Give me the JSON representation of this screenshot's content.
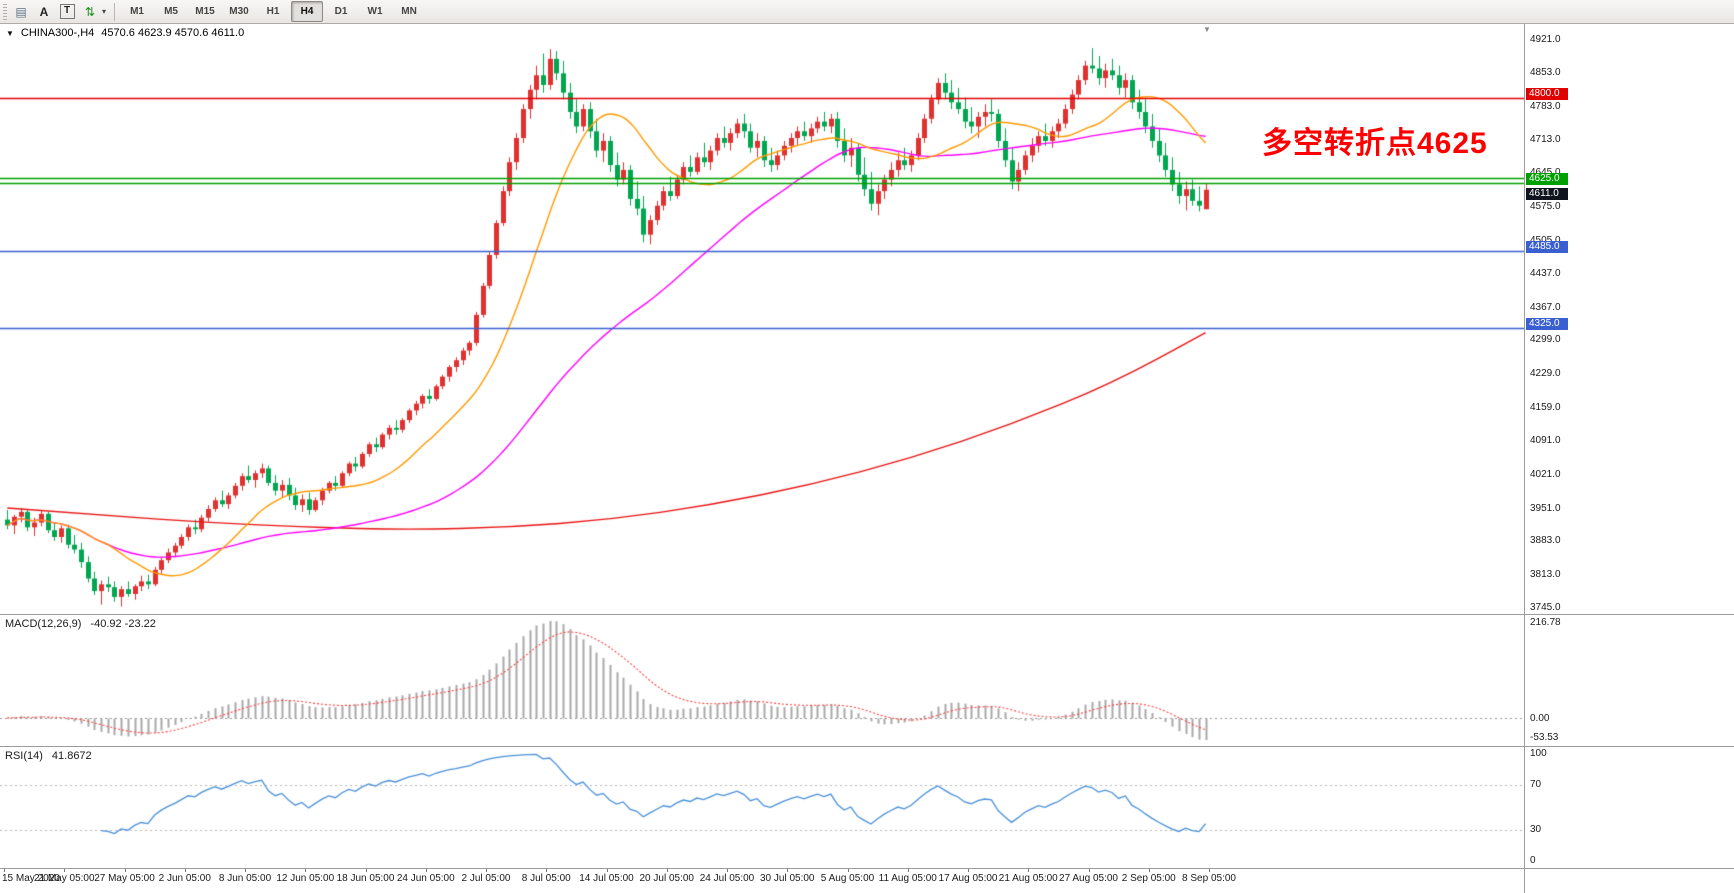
{
  "toolbar": {
    "icons": [
      {
        "name": "chart-grid-icon",
        "glyph": "▤",
        "color": "#5d7289",
        "boxed": false
      },
      {
        "name": "text-cursor-icon",
        "glyph": "A",
        "color": "#222222",
        "boxed": false
      },
      {
        "name": "text-box-icon",
        "glyph": "T",
        "color": "#222222",
        "boxed": true
      },
      {
        "name": "sort-arrows-icon",
        "glyph": "⇅",
        "color": "#1f8f1f",
        "boxed": false
      }
    ],
    "dropdown_caret": "▾",
    "timeframes": [
      "M1",
      "M5",
      "M15",
      "M30",
      "H1",
      "H4",
      "D1",
      "W1",
      "MN"
    ],
    "selected_timeframe": "H4"
  },
  "header": {
    "symbol": "CHINA300-,H4",
    "ohlc": "4570.6 4623.9 4570.6 4611.0"
  },
  "annotation": {
    "text": "多空转折点4625",
    "color": "#ff0000"
  },
  "price_axis": {
    "ticks": [
      "4921.0",
      "4853.0",
      "4783.0",
      "4713.0",
      "4645.0",
      "4575.0",
      "4505.0",
      "4437.0",
      "4367.0",
      "4299.0",
      "4229.0",
      "4159.0",
      "4091.0",
      "4021.0",
      "3951.0",
      "3883.0",
      "3813.0",
      "3745.0"
    ]
  },
  "time_axis": {
    "labels": [
      "15 May 2020",
      "21 May 05:00",
      "27 May 05:00",
      "2 Jun 05:00",
      "8 Jun 05:00",
      "12 Jun 05:00",
      "18 Jun 05:00",
      "24 Jun 05:00",
      "2 Jul 05:00",
      "8 Jul 05:00",
      "14 Jul 05:00",
      "20 Jul 05:00",
      "24 Jul 05:00",
      "30 Jul 05:00",
      "5 Aug 05:00",
      "11 Aug 05:00",
      "17 Aug 05:00",
      "21 Aug 05:00",
      "27 Aug 05:00",
      "2 Sep 05:00",
      "8 Sep 05:00"
    ]
  },
  "levels": [
    {
      "value": 4800.0,
      "color": "#e10000",
      "label": "4800.0",
      "label_bg": "#e10000"
    },
    {
      "value": 4636.0,
      "color": "#00a000",
      "label": null,
      "label_bg": null
    },
    {
      "value": 4625.0,
      "color": "#00a000",
      "label": "4625.0",
      "label_bg": "#00a000"
    },
    {
      "value": 4485.0,
      "color": "#3a5fd0",
      "label": "4485.0",
      "label_bg": "#3a5fd0"
    },
    {
      "value": 4325.0,
      "color": "#3a5fd0",
      "label": "4325.0",
      "label_bg": "#3a5fd0"
    }
  ],
  "current_price": {
    "value": 4611.0,
    "label": "4611.0",
    "label_bg": "#10141e"
  },
  "macd": {
    "label": "MACD(12,26,9)",
    "values": "-40.92 -23.22",
    "axis_top": "216.78",
    "axis_zero": "0.00",
    "axis_bottom": "-53.53",
    "params": {
      "fast": 12,
      "slow": 26,
      "signal": 9
    }
  },
  "rsi": {
    "label": "RSI(14)",
    "value": "41.8672",
    "period": 14,
    "axis": [
      "100",
      "70",
      "30",
      "0"
    ],
    "levels": [
      70,
      30
    ]
  },
  "chart_data": {
    "type": "candlestick",
    "symbol": "CHINA300-",
    "timeframe": "H4",
    "title": "CHINA300- H4 candlestick chart with MACD and RSI",
    "y_range": [
      3745.0,
      4921.0
    ],
    "last_ohlc": {
      "open": 4570.6,
      "high": 4623.9,
      "low": 4570.6,
      "close": 4611.0
    },
    "colors": {
      "bull": "#e03131",
      "bear": "#00a651",
      "ma_fast": "#ff9a00",
      "ma_mid": "#ff00ff",
      "ma_slow": "#e81414",
      "macd_bar": "#a8a8a8",
      "macd_signal": "#ff4040",
      "rsi_line": "#4a90d9"
    },
    "ma_periods": {
      "orange": 16,
      "magenta": 55
    },
    "ma_red": {
      "indices": [
        0,
        15,
        30,
        45,
        60,
        75,
        90,
        105,
        120,
        135,
        150,
        165,
        179
      ],
      "values": [
        3952,
        3936,
        3922,
        3912,
        3907,
        3912,
        3928,
        3958,
        4000,
        4055,
        4125,
        4210,
        4315
      ]
    },
    "candles": [
      [
        3928,
        3948,
        3908,
        3916
      ],
      [
        3916,
        3938,
        3898,
        3934
      ],
      [
        3934,
        3952,
        3922,
        3944
      ],
      [
        3944,
        3950,
        3904,
        3912
      ],
      [
        3912,
        3932,
        3894,
        3922
      ],
      [
        3922,
        3946,
        3914,
        3940
      ],
      [
        3940,
        3944,
        3900,
        3906
      ],
      [
        3906,
        3922,
        3884,
        3892
      ],
      [
        3892,
        3916,
        3880,
        3910
      ],
      [
        3910,
        3918,
        3868,
        3876
      ],
      [
        3876,
        3896,
        3858,
        3866
      ],
      [
        3866,
        3880,
        3828,
        3840
      ],
      [
        3840,
        3852,
        3798,
        3806
      ],
      [
        3806,
        3820,
        3772,
        3780
      ],
      [
        3780,
        3802,
        3752,
        3794
      ],
      [
        3794,
        3810,
        3778,
        3788
      ],
      [
        3788,
        3800,
        3758,
        3768
      ],
      [
        3768,
        3790,
        3748,
        3784
      ],
      [
        3784,
        3800,
        3768,
        3774
      ],
      [
        3774,
        3794,
        3762,
        3790
      ],
      [
        3790,
        3812,
        3780,
        3800
      ],
      [
        3800,
        3814,
        3784,
        3794
      ],
      [
        3794,
        3830,
        3790,
        3824
      ],
      [
        3824,
        3850,
        3814,
        3844
      ],
      [
        3844,
        3868,
        3838,
        3860
      ],
      [
        3860,
        3880,
        3850,
        3874
      ],
      [
        3874,
        3898,
        3868,
        3892
      ],
      [
        3892,
        3918,
        3884,
        3912
      ],
      [
        3912,
        3928,
        3898,
        3908
      ],
      [
        3908,
        3938,
        3902,
        3932
      ],
      [
        3932,
        3958,
        3924,
        3950
      ],
      [
        3950,
        3974,
        3944,
        3968
      ],
      [
        3968,
        3988,
        3954,
        3960
      ],
      [
        3960,
        3984,
        3950,
        3978
      ],
      [
        3978,
        4004,
        3972,
        3998
      ],
      [
        3998,
        4024,
        3988,
        4018
      ],
      [
        4018,
        4040,
        4004,
        4010
      ],
      [
        4010,
        4030,
        3994,
        4024
      ],
      [
        4024,
        4044,
        4014,
        4034
      ],
      [
        4034,
        4040,
        3998,
        4004
      ],
      [
        4004,
        4020,
        3978,
        3988
      ],
      [
        3988,
        4010,
        3974,
        4000
      ],
      [
        4000,
        4014,
        3968,
        3978
      ],
      [
        3978,
        3994,
        3948,
        3958
      ],
      [
        3958,
        3980,
        3944,
        3970
      ],
      [
        3970,
        3984,
        3938,
        3948
      ],
      [
        3948,
        3974,
        3944,
        3968
      ],
      [
        3968,
        3994,
        3958,
        3988
      ],
      [
        3988,
        4008,
        3982,
        4004
      ],
      [
        4004,
        4018,
        3988,
        3998
      ],
      [
        3998,
        4028,
        3994,
        4024
      ],
      [
        4024,
        4048,
        4018,
        4044
      ],
      [
        4044,
        4058,
        4028,
        4038
      ],
      [
        4038,
        4068,
        4034,
        4064
      ],
      [
        4064,
        4088,
        4058,
        4084
      ],
      [
        4084,
        4098,
        4068,
        4078
      ],
      [
        4078,
        4108,
        4074,
        4104
      ],
      [
        4104,
        4124,
        4094,
        4118
      ],
      [
        4118,
        4134,
        4104,
        4114
      ],
      [
        4114,
        4138,
        4108,
        4134
      ],
      [
        4134,
        4158,
        4128,
        4154
      ],
      [
        4154,
        4174,
        4144,
        4168
      ],
      [
        4168,
        4188,
        4158,
        4184
      ],
      [
        4184,
        4198,
        4168,
        4178
      ],
      [
        4178,
        4208,
        4174,
        4204
      ],
      [
        4204,
        4228,
        4198,
        4224
      ],
      [
        4224,
        4248,
        4214,
        4244
      ],
      [
        4244,
        4264,
        4234,
        4258
      ],
      [
        4258,
        4284,
        4248,
        4278
      ],
      [
        4278,
        4298,
        4268,
        4294
      ],
      [
        4294,
        4358,
        4288,
        4352
      ],
      [
        4352,
        4418,
        4346,
        4412
      ],
      [
        4412,
        4482,
        4406,
        4476
      ],
      [
        4476,
        4548,
        4468,
        4542
      ],
      [
        4542,
        4618,
        4536,
        4608
      ],
      [
        4608,
        4678,
        4598,
        4668
      ],
      [
        4668,
        4728,
        4652,
        4718
      ],
      [
        4718,
        4788,
        4708,
        4778
      ],
      [
        4778,
        4828,
        4758,
        4818
      ],
      [
        4818,
        4868,
        4798,
        4848
      ],
      [
        4848,
        4893,
        4812,
        4828
      ],
      [
        4828,
        4902,
        4818,
        4882
      ],
      [
        4882,
        4898,
        4838,
        4852
      ],
      [
        4852,
        4878,
        4798,
        4812
      ],
      [
        4812,
        4832,
        4758,
        4772
      ],
      [
        4772,
        4798,
        4728,
        4742
      ],
      [
        4742,
        4788,
        4732,
        4778
      ],
      [
        4778,
        4792,
        4718,
        4732
      ],
      [
        4732,
        4758,
        4678,
        4692
      ],
      [
        4692,
        4728,
        4668,
        4712
      ],
      [
        4712,
        4722,
        4648,
        4662
      ],
      [
        4662,
        4688,
        4618,
        4632
      ],
      [
        4632,
        4668,
        4622,
        4652
      ],
      [
        4652,
        4662,
        4578,
        4592
      ],
      [
        4592,
        4628,
        4558,
        4572
      ],
      [
        4572,
        4598,
        4502,
        4518
      ],
      [
        4518,
        4558,
        4498,
        4548
      ],
      [
        4548,
        4588,
        4538,
        4578
      ],
      [
        4578,
        4618,
        4568,
        4608
      ],
      [
        4608,
        4638,
        4588,
        4598
      ],
      [
        4598,
        4642,
        4592,
        4632
      ],
      [
        4632,
        4668,
        4622,
        4658
      ],
      [
        4658,
        4682,
        4638,
        4648
      ],
      [
        4648,
        4688,
        4642,
        4678
      ],
      [
        4678,
        4708,
        4658,
        4668
      ],
      [
        4668,
        4702,
        4652,
        4692
      ],
      [
        4692,
        4728,
        4682,
        4718
      ],
      [
        4718,
        4742,
        4698,
        4708
      ],
      [
        4708,
        4738,
        4692,
        4728
      ],
      [
        4728,
        4758,
        4718,
        4748
      ],
      [
        4748,
        4768,
        4718,
        4732
      ],
      [
        4732,
        4748,
        4688,
        4698
      ],
      [
        4698,
        4728,
        4678,
        4712
      ],
      [
        4712,
        4722,
        4658,
        4672
      ],
      [
        4672,
        4698,
        4648,
        4662
      ],
      [
        4662,
        4692,
        4652,
        4682
      ],
      [
        4682,
        4712,
        4672,
        4702
      ],
      [
        4702,
        4728,
        4688,
        4718
      ],
      [
        4718,
        4742,
        4702,
        4732
      ],
      [
        4732,
        4752,
        4712,
        4722
      ],
      [
        4722,
        4748,
        4708,
        4738
      ],
      [
        4738,
        4762,
        4728,
        4752
      ],
      [
        4752,
        4772,
        4732,
        4742
      ],
      [
        4742,
        4768,
        4728,
        4758
      ],
      [
        4758,
        4772,
        4698,
        4712
      ],
      [
        4712,
        4738,
        4668,
        4682
      ],
      [
        4682,
        4718,
        4658,
        4698
      ],
      [
        4698,
        4708,
        4628,
        4642
      ],
      [
        4642,
        4678,
        4598,
        4612
      ],
      [
        4612,
        4648,
        4568,
        4582
      ],
      [
        4582,
        4622,
        4558,
        4608
      ],
      [
        4608,
        4642,
        4592,
        4632
      ],
      [
        4632,
        4668,
        4618,
        4652
      ],
      [
        4652,
        4688,
        4638,
        4672
      ],
      [
        4672,
        4698,
        4652,
        4662
      ],
      [
        4662,
        4692,
        4648,
        4682
      ],
      [
        4682,
        4728,
        4672,
        4718
      ],
      [
        4718,
        4768,
        4708,
        4758
      ],
      [
        4758,
        4808,
        4748,
        4798
      ],
      [
        4798,
        4842,
        4788,
        4832
      ],
      [
        4832,
        4852,
        4798,
        4812
      ],
      [
        4812,
        4838,
        4778,
        4792
      ],
      [
        4792,
        4822,
        4768,
        4778
      ],
      [
        4778,
        4802,
        4738,
        4752
      ],
      [
        4752,
        4782,
        4728,
        4742
      ],
      [
        4742,
        4772,
        4718,
        4762
      ],
      [
        4762,
        4788,
        4742,
        4772
      ],
      [
        4772,
        4798,
        4752,
        4768
      ],
      [
        4768,
        4778,
        4698,
        4712
      ],
      [
        4712,
        4738,
        4658,
        4672
      ],
      [
        4672,
        4698,
        4612,
        4628
      ],
      [
        4628,
        4668,
        4608,
        4652
      ],
      [
        4652,
        4692,
        4642,
        4682
      ],
      [
        4682,
        4718,
        4668,
        4702
      ],
      [
        4702,
        4732,
        4688,
        4722
      ],
      [
        4722,
        4748,
        4702,
        4712
      ],
      [
        4712,
        4742,
        4698,
        4732
      ],
      [
        4732,
        4758,
        4718,
        4748
      ],
      [
        4748,
        4788,
        4738,
        4778
      ],
      [
        4778,
        4818,
        4768,
        4808
      ],
      [
        4808,
        4848,
        4798,
        4838
      ],
      [
        4838,
        4878,
        4828,
        4868
      ],
      [
        4868,
        4904,
        4852,
        4862
      ],
      [
        4862,
        4888,
        4828,
        4842
      ],
      [
        4842,
        4872,
        4822,
        4858
      ],
      [
        4858,
        4882,
        4838,
        4848
      ],
      [
        4848,
        4868,
        4808,
        4822
      ],
      [
        4822,
        4852,
        4802,
        4838
      ],
      [
        4838,
        4848,
        4778,
        4792
      ],
      [
        4792,
        4818,
        4758,
        4772
      ],
      [
        4772,
        4798,
        4728,
        4742
      ],
      [
        4742,
        4768,
        4698,
        4712
      ],
      [
        4712,
        4738,
        4668,
        4682
      ],
      [
        4682,
        4708,
        4638,
        4652
      ],
      [
        4652,
        4678,
        4608,
        4622
      ],
      [
        4622,
        4648,
        4582,
        4598
      ],
      [
        4598,
        4628,
        4568,
        4612
      ],
      [
        4612,
        4632,
        4578,
        4588
      ],
      [
        4588,
        4618,
        4566,
        4578
      ],
      [
        4570.6,
        4623.9,
        4570.6,
        4611.0
      ]
    ]
  }
}
